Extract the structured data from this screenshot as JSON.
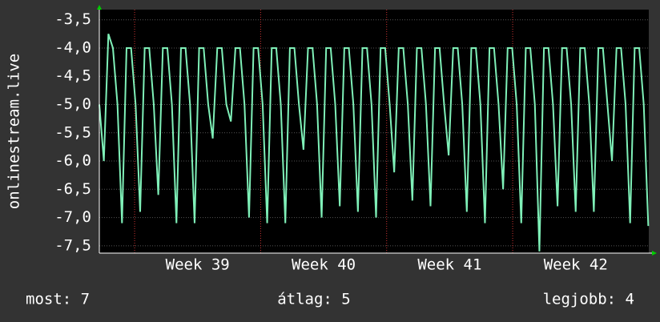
{
  "chart_data": {
    "type": "line",
    "ylabel": "onlinestream.live",
    "footer": [
      "most: 7",
      "átlag: 5",
      "legjobb: 4"
    ],
    "xlim": [
      38.72,
      43.08
    ],
    "xticks": [
      {
        "value": 39.5,
        "label": "Week 39"
      },
      {
        "value": 40.5,
        "label": "Week 40"
      },
      {
        "value": 41.5,
        "label": "Week 41"
      },
      {
        "value": 42.5,
        "label": "Week 42"
      }
    ],
    "ylim": [
      -7.63,
      -3.32
    ],
    "yticks": [
      {
        "value": -3.5,
        "label": "-3,5"
      },
      {
        "value": -4.0,
        "label": "-4,0"
      },
      {
        "value": -4.5,
        "label": "-4,5"
      },
      {
        "value": -5.0,
        "label": "-5,0"
      },
      {
        "value": -5.5,
        "label": "-5,5"
      },
      {
        "value": -6.0,
        "label": "-6,0"
      },
      {
        "value": -6.5,
        "label": "-6,5"
      },
      {
        "value": -7.0,
        "label": "-7,0"
      },
      {
        "value": -7.5,
        "label": "-7,5"
      }
    ],
    "grid": true,
    "x": [
      38.72,
      38.756,
      38.792,
      38.828,
      38.864,
      38.9,
      38.936,
      38.972,
      39.008,
      39.044,
      39.08,
      39.116,
      39.152,
      39.188,
      39.224,
      39.26,
      39.296,
      39.332,
      39.368,
      39.404,
      39.44,
      39.476,
      39.512,
      39.548,
      39.584,
      39.62,
      39.656,
      39.692,
      39.728,
      39.764,
      39.8,
      39.836,
      39.872,
      39.908,
      39.944,
      39.98,
      40.016,
      40.052,
      40.088,
      40.124,
      40.16,
      40.196,
      40.232,
      40.268,
      40.304,
      40.34,
      40.376,
      40.412,
      40.448,
      40.484,
      40.52,
      40.556,
      40.592,
      40.628,
      40.664,
      40.7,
      40.736,
      40.772,
      40.808,
      40.844,
      40.88,
      40.916,
      40.952,
      40.988,
      41.024,
      41.06,
      41.096,
      41.132,
      41.168,
      41.204,
      41.24,
      41.276,
      41.312,
      41.348,
      41.384,
      41.42,
      41.456,
      41.492,
      41.528,
      41.564,
      41.6,
      41.636,
      41.672,
      41.708,
      41.744,
      41.78,
      41.816,
      41.852,
      41.888,
      41.924,
      41.96,
      41.996,
      42.032,
      42.068,
      42.104,
      42.14,
      42.176,
      42.212,
      42.248,
      42.284,
      42.32,
      42.356,
      42.392,
      42.428,
      42.464,
      42.5,
      42.536,
      42.572,
      42.608,
      42.644,
      42.68,
      42.716,
      42.752,
      42.788,
      42.824,
      42.86,
      42.896,
      42.932,
      42.968,
      43.004,
      43.04,
      43.076
    ],
    "series": [
      {
        "name": "onlinestream.live",
        "color": "#7ff0b8",
        "values": [
          -5.0,
          -6.0,
          -3.75,
          -4.0,
          -5.0,
          -7.1,
          -4.0,
          -4.0,
          -5.0,
          -6.9,
          -4.0,
          -4.0,
          -5.0,
          -6.6,
          -4.0,
          -4.0,
          -5.0,
          -7.1,
          -4.0,
          -4.0,
          -5.0,
          -7.1,
          -4.0,
          -4.0,
          -5.0,
          -5.6,
          -4.0,
          -4.0,
          -5.0,
          -5.3,
          -4.0,
          -4.0,
          -5.0,
          -7.0,
          -4.0,
          -4.0,
          -5.0,
          -7.1,
          -4.0,
          -4.0,
          -5.0,
          -7.1,
          -4.0,
          -4.0,
          -5.0,
          -5.8,
          -4.0,
          -4.0,
          -5.0,
          -7.0,
          -4.0,
          -4.0,
          -5.0,
          -6.8,
          -4.0,
          -4.0,
          -5.0,
          -6.9,
          -4.0,
          -4.0,
          -5.0,
          -7.0,
          -4.0,
          -4.0,
          -5.0,
          -6.2,
          -4.0,
          -4.0,
          -5.0,
          -6.7,
          -4.0,
          -4.0,
          -5.0,
          -6.8,
          -4.0,
          -4.0,
          -5.0,
          -5.9,
          -4.0,
          -4.0,
          -5.0,
          -6.9,
          -4.0,
          -4.0,
          -5.0,
          -7.1,
          -4.0,
          -4.0,
          -5.0,
          -6.5,
          -4.0,
          -4.0,
          -5.0,
          -7.1,
          -4.0,
          -4.0,
          -5.0,
          -7.6,
          -4.0,
          -4.0,
          -5.0,
          -6.8,
          -4.0,
          -4.0,
          -5.0,
          -6.9,
          -4.0,
          -4.0,
          -5.0,
          -6.9,
          -4.0,
          -4.0,
          -5.0,
          -6.0,
          -4.0,
          -4.0,
          -5.0,
          -7.1,
          -4.0,
          -4.0,
          -5.0,
          -7.15
        ]
      }
    ]
  }
}
